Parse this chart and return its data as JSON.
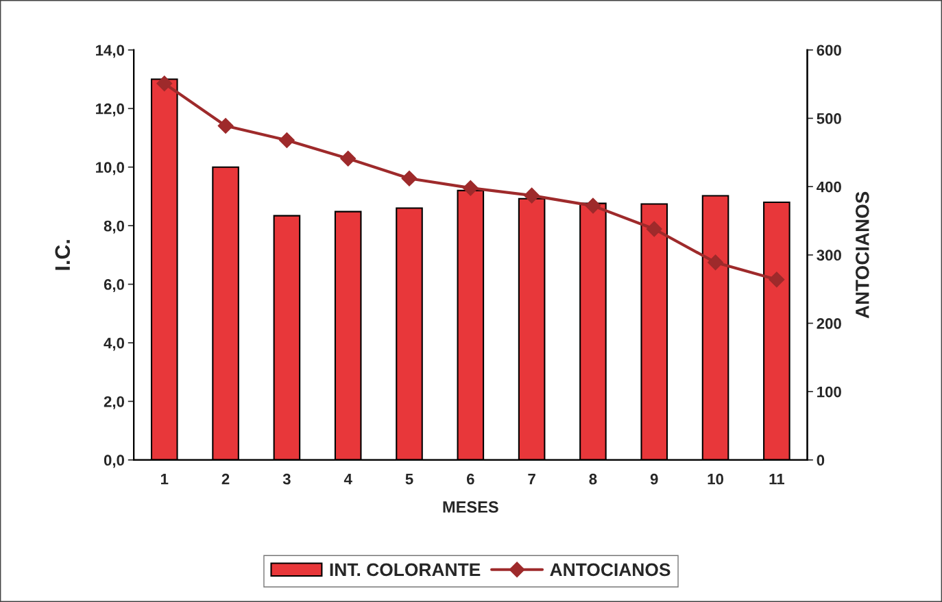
{
  "chart_data": {
    "type": "bar",
    "xlabel": "MESES",
    "ylabel": "I.C.",
    "y2label": "ANTOCIANOS",
    "categories": [
      "1",
      "2",
      "3",
      "4",
      "5",
      "6",
      "7",
      "8",
      "9",
      "10",
      "11"
    ],
    "series": [
      {
        "name": "INT. COLORANTE",
        "color": "#e8373a",
        "values": [
          13.0,
          10.0,
          8.34,
          8.48,
          8.6,
          9.2,
          8.92,
          8.76,
          8.74,
          9.02,
          8.8
        ]
      },
      {
        "name": "ANTOCIANOS",
        "type": "line",
        "axis": "y2",
        "color": "#9e2a2b",
        "marker": "diamond",
        "values": [
          551,
          489,
          468,
          441,
          412,
          398,
          387,
          372,
          338,
          289,
          264
        ]
      }
    ],
    "ylim": [
      0,
      14
    ],
    "yticks": [
      {
        "value": 0,
        "label": "0,0"
      },
      {
        "value": 2,
        "label": "2,0"
      },
      {
        "value": 4,
        "label": "4,0"
      },
      {
        "value": 6,
        "label": "6,0"
      },
      {
        "value": 8,
        "label": "8,0"
      },
      {
        "value": 10,
        "label": "10,0"
      },
      {
        "value": 12,
        "label": "12,0"
      },
      {
        "value": 14,
        "label": "14,0"
      }
    ],
    "y2lim": [
      0,
      600
    ],
    "y2ticks": [
      0,
      100,
      200,
      300,
      400,
      500,
      600
    ],
    "grid": false,
    "legend": "bottom"
  }
}
